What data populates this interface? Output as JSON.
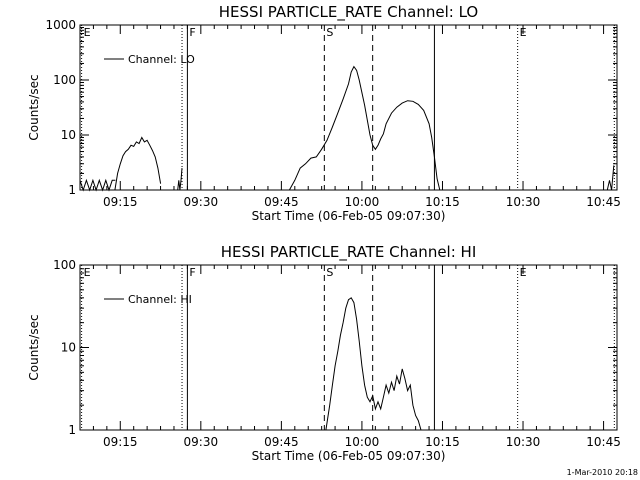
{
  "chart_data": [
    {
      "type": "line",
      "title": "HESSI PARTICLE_RATE Channel: LO",
      "xlabel": "Start Time (06-Feb-05 09:07:30)",
      "ylabel": "Counts/sec",
      "x_unit": "minutes after 09:07:30",
      "xlim": [
        0,
        100
      ],
      "ylim": [
        1,
        1000
      ],
      "yscale": "log",
      "xticks": [
        {
          "value": 7.5,
          "label": "09:15"
        },
        {
          "value": 22.5,
          "label": "09:30"
        },
        {
          "value": 37.5,
          "label": "09:45"
        },
        {
          "value": 52.5,
          "label": "10:00"
        },
        {
          "value": 67.5,
          "label": "10:15"
        },
        {
          "value": 82.5,
          "label": "10:30"
        },
        {
          "value": 97.5,
          "label": "10:45"
        }
      ],
      "yticks": [
        {
          "value": 1,
          "label": "1"
        },
        {
          "value": 10,
          "label": "10"
        },
        {
          "value": 100,
          "label": "100"
        },
        {
          "value": 1000,
          "label": "1000"
        }
      ],
      "legend": {
        "label": "Channel: LO",
        "position": "top-left"
      },
      "markers": [
        {
          "x": 0.3,
          "label": "E",
          "style": "dotted"
        },
        {
          "x": 19.0,
          "label": "",
          "style": "dotted"
        },
        {
          "x": 20.0,
          "label": "F",
          "style": "solid"
        },
        {
          "x": 45.5,
          "label": "S",
          "style": "dashed"
        },
        {
          "x": 54.5,
          "label": "",
          "style": "dashed"
        },
        {
          "x": 66.0,
          "label": "",
          "style": "solid"
        },
        {
          "x": 81.5,
          "label": "E",
          "style": "dotted"
        },
        {
          "x": 99.5,
          "label": "",
          "style": "dotted"
        }
      ],
      "series": [
        {
          "name": "Channel: LO",
          "segments": [
            {
              "x": [
                0.0,
                0.6,
                1.2,
                1.8,
                2.4,
                3.0,
                3.6,
                4.2,
                4.8,
                5.4,
                6.0,
                6.6
              ],
              "y": [
                1.5,
                1.0,
                1.5,
                1.0,
                1.5,
                1.0,
                1.5,
                1.0,
                1.5,
                1.0,
                1.5,
                1.5
              ]
            },
            {
              "x": [
                6.5,
                7.0,
                7.5,
                8.0,
                8.5,
                9.0,
                9.5,
                10.0,
                10.5,
                11.0,
                11.5,
                12.0,
                12.5,
                13.0,
                13.5,
                14.0,
                14.5,
                15.0
              ],
              "y": [
                1.0,
                2.0,
                3.0,
                4.2,
                5.0,
                5.5,
                6.5,
                6.2,
                7.5,
                7.0,
                9.0,
                7.5,
                8.0,
                6.5,
                5.2,
                4.0,
                2.5,
                1.3
              ]
            },
            {
              "x": [
                18.2,
                18.4,
                18.6,
                18.8,
                19.0
              ],
              "y": [
                1.0,
                1.5,
                1.0,
                1.5,
                2.5
              ]
            },
            {
              "x": [
                39.0,
                40.0,
                41.0,
                42.0,
                43.0,
                44.0,
                45.0,
                46.0,
                47.0,
                48.0,
                49.0,
                50.0,
                50.5,
                51.0,
                51.5,
                52.0,
                53.0,
                54.0,
                54.5
              ],
              "y": [
                1.0,
                1.5,
                2.5,
                3.0,
                3.8,
                4.0,
                5.5,
                8.0,
                14.0,
                25.0,
                45.0,
                85.0,
                140.0,
                175.0,
                150.0,
                100.0,
                35.0,
                10.0,
                6.5
              ]
            },
            {
              "x": [
                54.5,
                55.0,
                55.5,
                56.0,
                56.5,
                57.0,
                58.0,
                59.0,
                60.0,
                61.0,
                62.0,
                63.0,
                64.0,
                65.0,
                65.5,
                66.0,
                66.5,
                67.0
              ],
              "y": [
                6.5,
                5.5,
                6.5,
                8.5,
                10.5,
                16.0,
                25.0,
                32.0,
                38.0,
                42.0,
                41.0,
                36.0,
                28.0,
                16.0,
                9.0,
                4.0,
                1.6,
                1.0
              ]
            },
            {
              "x": [
                98.2,
                98.6,
                99.0,
                99.4
              ],
              "y": [
                1.0,
                1.5,
                1.0,
                2.8
              ]
            }
          ]
        }
      ],
      "grid": false
    },
    {
      "type": "line",
      "title": "HESSI PARTICLE_RATE Channel: HI",
      "xlabel": "Start Time (06-Feb-05 09:07:30)",
      "ylabel": "Counts/sec",
      "x_unit": "minutes after 09:07:30",
      "xlim": [
        0,
        100
      ],
      "ylim": [
        1,
        100
      ],
      "yscale": "log",
      "xticks": [
        {
          "value": 7.5,
          "label": "09:15"
        },
        {
          "value": 22.5,
          "label": "09:30"
        },
        {
          "value": 37.5,
          "label": "09:45"
        },
        {
          "value": 52.5,
          "label": "10:00"
        },
        {
          "value": 67.5,
          "label": "10:15"
        },
        {
          "value": 82.5,
          "label": "10:30"
        },
        {
          "value": 97.5,
          "label": "10:45"
        }
      ],
      "yticks": [
        {
          "value": 1,
          "label": "1"
        },
        {
          "value": 10,
          "label": "10"
        },
        {
          "value": 100,
          "label": "100"
        }
      ],
      "legend": {
        "label": "Channel: HI",
        "position": "top-left"
      },
      "markers": [
        {
          "x": 0.3,
          "label": "E",
          "style": "dotted"
        },
        {
          "x": 19.0,
          "label": "",
          "style": "dotted"
        },
        {
          "x": 20.0,
          "label": "F",
          "style": "solid"
        },
        {
          "x": 45.5,
          "label": "S",
          "style": "dashed"
        },
        {
          "x": 54.5,
          "label": "",
          "style": "dashed"
        },
        {
          "x": 66.0,
          "label": "",
          "style": "solid"
        },
        {
          "x": 81.5,
          "label": "E",
          "style": "dotted"
        },
        {
          "x": 99.5,
          "label": "",
          "style": "dotted"
        }
      ],
      "series": [
        {
          "name": "Channel: HI",
          "segments": [
            {
              "x": [
                45.8,
                46.5,
                47.0,
                47.5,
                48.0,
                48.5,
                49.0,
                49.5,
                50.0,
                50.5,
                51.0,
                51.5,
                52.0,
                52.5,
                53.0,
                53.5,
                54.0,
                54.5,
                55.0,
                55.5,
                56.0,
                56.5,
                57.0,
                57.5,
                58.0,
                58.5,
                59.0,
                59.5,
                60.0,
                60.5,
                61.0,
                61.5,
                62.0,
                62.5,
                63.0,
                63.5
              ],
              "y": [
                1.0,
                2.0,
                3.5,
                6.0,
                9.0,
                14.0,
                20.0,
                30.0,
                38.0,
                40.0,
                35.0,
                22.0,
                12.0,
                6.0,
                3.5,
                2.5,
                2.2,
                2.6,
                1.8,
                2.2,
                1.8,
                2.5,
                3.5,
                2.8,
                3.8,
                3.0,
                4.5,
                3.6,
                5.5,
                4.2,
                3.0,
                3.5,
                2.0,
                1.5,
                1.3,
                1.0
              ]
            }
          ]
        }
      ],
      "grid": false
    }
  ],
  "footer": "1-Mar-2010 20:18"
}
